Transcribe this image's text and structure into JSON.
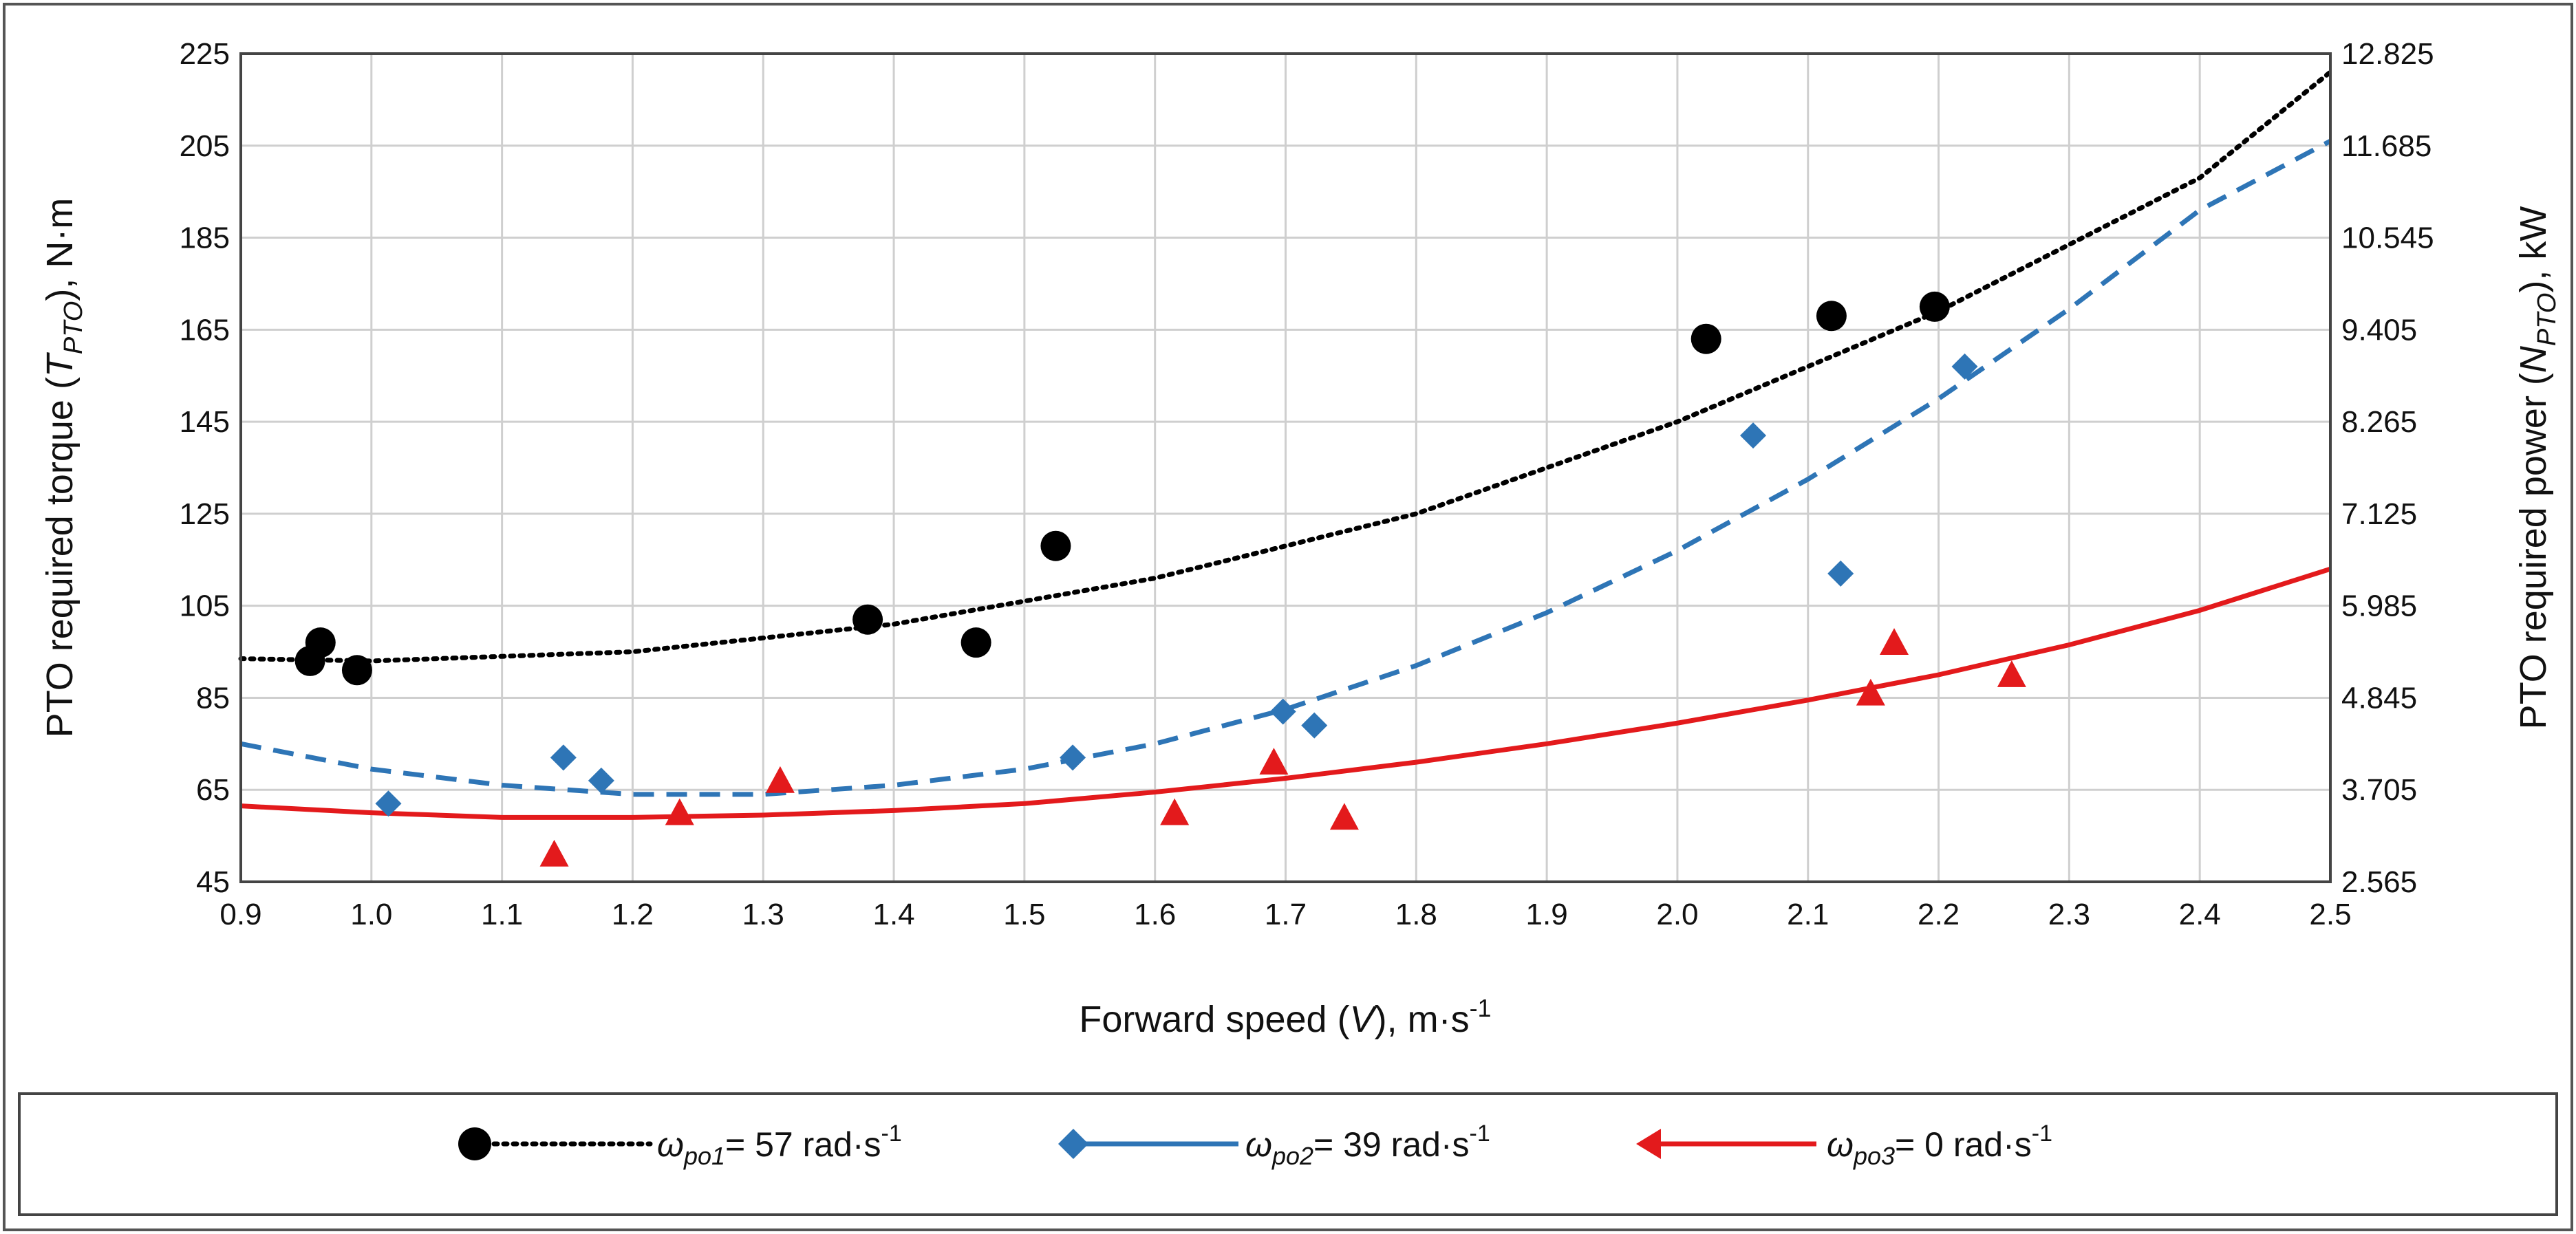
{
  "chart_data": {
    "type": "scatter",
    "title": "",
    "xlabel": {
      "prefix": "Forward speed (",
      "var": "V",
      "suffix": "), m·s",
      "sup": "-1"
    },
    "ylabel_left": {
      "prefix": "PTO required torque (",
      "var": "T",
      "sub": "PTO",
      "suffix": "), N·m"
    },
    "ylabel_right": {
      "prefix": "PTO required power (",
      "var": "N",
      "sub": "PTO",
      "suffix": "), kW"
    },
    "xlim": [
      0.9,
      2.5
    ],
    "ylim_left": [
      45,
      225
    ],
    "ylim_right": [
      2.565,
      12.825
    ],
    "x_ticks": [
      "0.9",
      "1.0",
      "1.1",
      "1.2",
      "1.3",
      "1.4",
      "1.5",
      "1.6",
      "1.7",
      "1.8",
      "1.9",
      "2.0",
      "2.1",
      "2.2",
      "2.3",
      "2.4",
      "2.5"
    ],
    "y_ticks_left": [
      "45",
      "65",
      "85",
      "105",
      "125",
      "145",
      "165",
      "185",
      "205",
      "225"
    ],
    "y_ticks_right": [
      "2.565",
      "3.705",
      "4.845",
      "5.985",
      "7.125",
      "8.265",
      "9.405",
      "10.545",
      "11.685",
      "12.825"
    ],
    "grid": true,
    "legend_position": "bottom",
    "series": [
      {
        "name": "ωpo1 = 57 rad·s-1",
        "legend": {
          "symbol": "ω",
          "sub": "po1",
          "text": "= 57 rad·s",
          "sup": "-1"
        },
        "marker": "circle",
        "line_style": "dotted",
        "color": "#000000",
        "points": [
          [
            0.953,
            93
          ],
          [
            0.961,
            97
          ],
          [
            0.989,
            91
          ],
          [
            1.38,
            102
          ],
          [
            1.463,
            97
          ],
          [
            1.524,
            118
          ],
          [
            2.022,
            163
          ],
          [
            2.118,
            168
          ],
          [
            2.197,
            170
          ]
        ],
        "trend": [
          [
            0.9,
            93.5
          ],
          [
            1.0,
            93.0
          ],
          [
            1.2,
            95.0
          ],
          [
            1.4,
            101.0
          ],
          [
            1.6,
            111.0
          ],
          [
            1.8,
            125.0
          ],
          [
            2.0,
            145.0
          ],
          [
            2.2,
            169.0
          ],
          [
            2.4,
            198.0
          ],
          [
            2.5,
            221.0
          ]
        ]
      },
      {
        "name": "ωpo2 = 39 rad·s-1",
        "legend": {
          "symbol": "ω",
          "sub": "po2",
          "text": "= 39 rad·s",
          "sup": "-1"
        },
        "marker": "diamond",
        "line_style": "dashed",
        "color": "#2e75b6",
        "points": [
          [
            1.013,
            62
          ],
          [
            1.147,
            72
          ],
          [
            1.176,
            67
          ],
          [
            1.537,
            72
          ],
          [
            1.698,
            82
          ],
          [
            1.722,
            79
          ],
          [
            2.058,
            142
          ],
          [
            2.125,
            112
          ],
          [
            2.22,
            157
          ]
        ],
        "trend": [
          [
            0.9,
            75.0
          ],
          [
            1.0,
            69.5
          ],
          [
            1.1,
            66.0
          ],
          [
            1.2,
            64.0
          ],
          [
            1.3,
            64.0
          ],
          [
            1.4,
            66.0
          ],
          [
            1.5,
            69.5
          ],
          [
            1.6,
            75.0
          ],
          [
            1.7,
            82.5
          ],
          [
            1.8,
            92.0
          ],
          [
            1.9,
            103.5
          ],
          [
            2.0,
            117.0
          ],
          [
            2.1,
            132.5
          ],
          [
            2.2,
            150.0
          ],
          [
            2.3,
            169.5
          ],
          [
            2.4,
            191.0
          ],
          [
            2.5,
            206.0
          ]
        ]
      },
      {
        "name": "ωpo3 = 0 rad·s-1",
        "legend": {
          "symbol": "ω",
          "sub": "po3",
          "text": "= 0 rad·s",
          "sup": "-1"
        },
        "marker": "triangle",
        "line_style": "solid",
        "color": "#e31a1c",
        "points": [
          [
            1.14,
            51
          ],
          [
            1.236,
            60
          ],
          [
            1.313,
            67
          ],
          [
            1.615,
            60
          ],
          [
            1.691,
            71
          ],
          [
            1.745,
            59
          ],
          [
            2.148,
            86
          ],
          [
            2.166,
            97
          ],
          [
            2.256,
            90
          ]
        ],
        "trend": [
          [
            0.9,
            61.5
          ],
          [
            1.0,
            60.0
          ],
          [
            1.1,
            59.0
          ],
          [
            1.2,
            59.0
          ],
          [
            1.3,
            59.5
          ],
          [
            1.4,
            60.5
          ],
          [
            1.5,
            62.0
          ],
          [
            1.6,
            64.5
          ],
          [
            1.7,
            67.5
          ],
          [
            1.8,
            71.0
          ],
          [
            1.9,
            75.0
          ],
          [
            2.0,
            79.5
          ],
          [
            2.1,
            84.5
          ],
          [
            2.2,
            90.0
          ],
          [
            2.3,
            96.5
          ],
          [
            2.4,
            104.0
          ],
          [
            2.5,
            113.0
          ]
        ]
      }
    ]
  }
}
